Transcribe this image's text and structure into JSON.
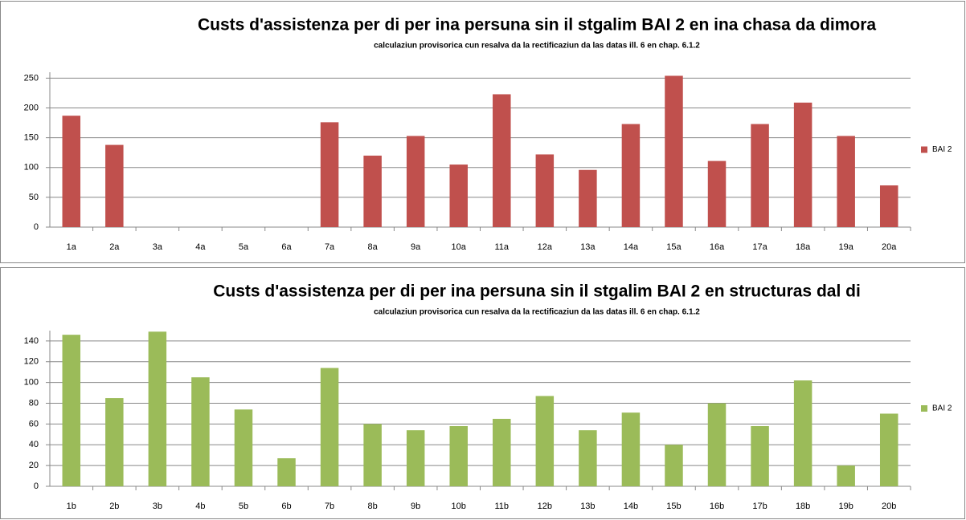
{
  "chart_data": [
    {
      "type": "bar",
      "title": "Custs d'assistenza per di per ina persuna sin il stgalim BAI 2 en ina chasa da dimora",
      "subtitle": "calculaziun provisorica cun resalva da la rectificaziun da las datas ill. 6 en chap. 6.1.2",
      "categories": [
        "1a",
        "2a",
        "3a",
        "4a",
        "5a",
        "6a",
        "7a",
        "8a",
        "9a",
        "10a",
        "11a",
        "12a",
        "13a",
        "14a",
        "15a",
        "16a",
        "17a",
        "18a",
        "19a",
        "20a"
      ],
      "series": [
        {
          "name": "BAI 2",
          "color": "#c0504d",
          "values": [
            187,
            138,
            0,
            0,
            0,
            0,
            176,
            120,
            153,
            105,
            223,
            122,
            96,
            173,
            254,
            111,
            173,
            209,
            153,
            70
          ]
        }
      ],
      "ylim": [
        0,
        260
      ],
      "yticks": [
        0,
        50,
        100,
        150,
        200,
        250
      ],
      "grid": true,
      "legend": "right"
    },
    {
      "type": "bar",
      "title": "Custs d'assistenza per di per ina persuna sin il stgalim BAI 2 en structuras dal di",
      "subtitle": "calculaziun provisorica cun resalva da la rectificaziun da las datas ill. 6 en chap. 6.1.2",
      "categories": [
        "1b",
        "2b",
        "3b",
        "4b",
        "5b",
        "6b",
        "7b",
        "8b",
        "9b",
        "10b",
        "11b",
        "12b",
        "13b",
        "14b",
        "15b",
        "16b",
        "17b",
        "18b",
        "19b",
        "20b"
      ],
      "series": [
        {
          "name": "BAI 2",
          "color": "#9bbb59",
          "values": [
            146,
            85,
            149,
            105,
            74,
            27,
            114,
            60,
            54,
            58,
            65,
            87,
            54,
            71,
            40,
            80,
            58,
            102,
            20,
            70
          ]
        }
      ],
      "ylim": [
        0,
        150
      ],
      "yticks": [
        0,
        20,
        40,
        60,
        80,
        100,
        120,
        140
      ],
      "grid": true,
      "legend": "right"
    }
  ]
}
